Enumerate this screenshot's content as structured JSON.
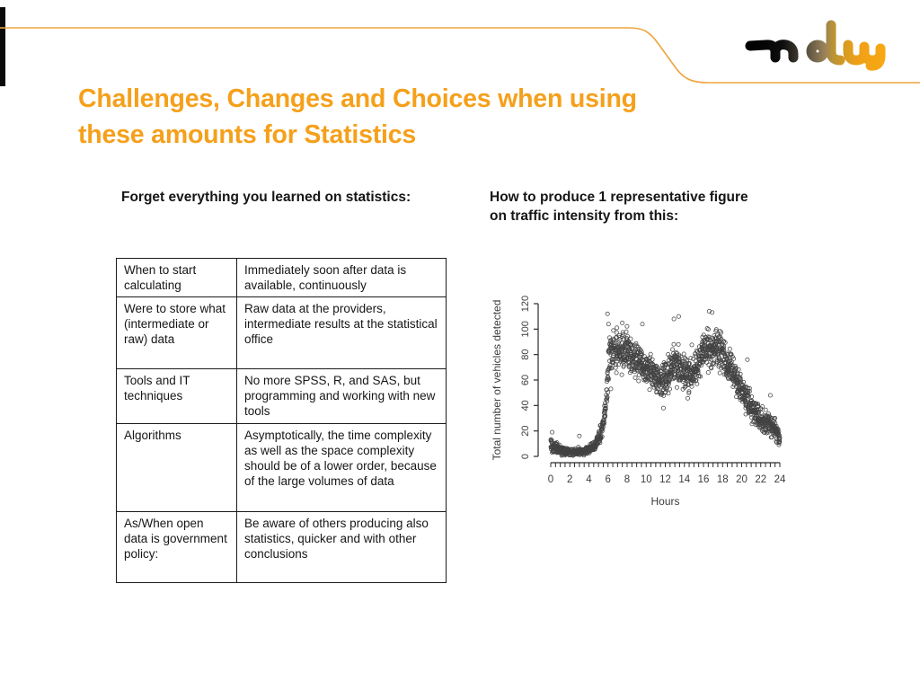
{
  "slide": {
    "title_lines": [
      "Challenges, Changes and Choices when using",
      "these amounts for Statistics"
    ],
    "title_color": "#F5A01B",
    "accent_line_color": "#EDA53E",
    "logo_text": "ndw"
  },
  "left_panel": {
    "heading": "Forget everything you learned on statistics:",
    "table": {
      "rows": [
        {
          "term": "When to start calculating",
          "description": "Immediately soon after data is available, continuously"
        },
        {
          "term": "Were to store what (intermediate or raw) data",
          "description": "Raw data at the providers, intermediate results at the statistical office"
        },
        {
          "term": "Tools and IT techniques",
          "description": "No more SPSS, R, and SAS, but programming and working with new tools"
        },
        {
          "term": "Algorithms",
          "description": "Asymptotically, the time complexity as well as the space complexity should be of a lower order, because of the large volumes of data"
        },
        {
          "term": "As/When open data is government policy:",
          "description": "Be aware of others producing also statistics, quicker and with other conclusions"
        }
      ]
    }
  },
  "right_panel": {
    "heading_lines": [
      "How to produce 1 representative figure",
      "on traffic intensity from this:"
    ]
  },
  "chart_data": {
    "type": "scatter",
    "title": "",
    "xlabel": "Hours",
    "ylabel": "Total number of vehicles detected",
    "xlim": [
      0,
      24
    ],
    "ylim": [
      0,
      120
    ],
    "xticks": [
      0,
      2,
      4,
      6,
      8,
      10,
      12,
      14,
      16,
      18,
      20,
      22,
      24
    ],
    "yticks": [
      0,
      20,
      40,
      60,
      80,
      100,
      120
    ],
    "minor_tick_step_hours": 0.5,
    "grid": false,
    "legend": "none",
    "marker": "open-circle",
    "point_color": "#141414",
    "axis_color": "#2b2b2b",
    "n_points": 1700,
    "seed": 987654321,
    "mean_profile": [
      [
        0.0,
        10,
        5.0
      ],
      [
        0.3,
        9,
        5.0
      ],
      [
        0.7,
        6,
        3.0
      ],
      [
        1.5,
        4,
        2.5
      ],
      [
        2.5,
        3.5,
        2.2
      ],
      [
        3.5,
        4,
        2.5
      ],
      [
        4.2,
        6,
        3.0
      ],
      [
        4.7,
        9,
        3.5
      ],
      [
        5.1,
        15,
        4.0
      ],
      [
        5.5,
        27,
        6.0
      ],
      [
        5.8,
        42,
        8.0
      ],
      [
        6.0,
        68,
        15.0
      ],
      [
        6.2,
        78,
        12.0
      ],
      [
        6.6,
        82,
        11.0
      ],
      [
        7.2,
        84,
        11.0
      ],
      [
        8.0,
        82,
        11.0
      ],
      [
        8.6,
        79,
        10.0
      ],
      [
        9.2,
        75,
        10.0
      ],
      [
        10.0,
        68,
        10.0
      ],
      [
        10.8,
        63,
        10.0
      ],
      [
        11.5,
        60,
        10.0
      ],
      [
        12.2,
        64,
        11.0
      ],
      [
        12.8,
        69,
        11.0
      ],
      [
        13.3,
        71,
        11.0
      ],
      [
        14.0,
        65,
        10.0
      ],
      [
        14.8,
        66,
        10.0
      ],
      [
        15.5,
        74,
        10.0
      ],
      [
        16.0,
        81,
        11.0
      ],
      [
        16.6,
        88,
        12.0
      ],
      [
        17.2,
        86,
        11.0
      ],
      [
        17.8,
        82,
        11.0
      ],
      [
        18.3,
        76,
        10.0
      ],
      [
        19.0,
        66,
        10.0
      ],
      [
        19.6,
        58,
        9.0
      ],
      [
        20.2,
        49,
        9.0
      ],
      [
        20.8,
        42,
        8.0
      ],
      [
        21.3,
        35,
        7.0
      ],
      [
        22.0,
        29,
        7.0
      ],
      [
        22.7,
        26,
        6.0
      ],
      [
        23.3,
        22,
        6.0
      ],
      [
        23.7,
        18,
        5.0
      ],
      [
        24.0,
        14,
        4.0
      ]
    ],
    "outliers": [
      [
        0.15,
        19
      ],
      [
        3.0,
        16
      ],
      [
        5.95,
        112
      ],
      [
        6.05,
        104
      ],
      [
        6.3,
        53
      ],
      [
        9.6,
        104
      ],
      [
        11.8,
        38
      ],
      [
        12.9,
        108
      ],
      [
        13.4,
        110
      ],
      [
        16.6,
        114
      ],
      [
        16.9,
        113
      ],
      [
        20.6,
        76
      ],
      [
        23.0,
        48
      ]
    ]
  }
}
